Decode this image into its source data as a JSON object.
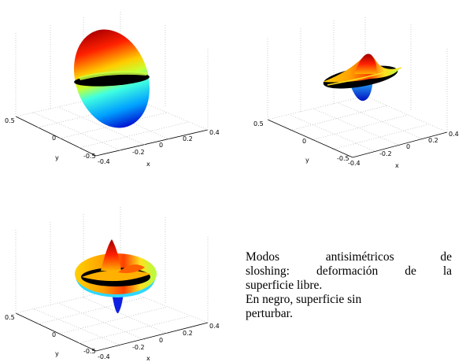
{
  "panels": [
    {
      "ticks_y": [
        "0.5",
        "0",
        "-0.5"
      ],
      "ticks_x": [
        "-0.4",
        "-0.2",
        "0",
        "0.2",
        "0.4"
      ],
      "label_y": "y",
      "label_x": "x",
      "mode": "mode-1"
    },
    {
      "ticks_y": [
        "0.5",
        "0",
        "-0.5"
      ],
      "ticks_x": [
        "-0.4",
        "-0.2",
        "0",
        "0.2",
        "0.4"
      ],
      "label_y": "y",
      "label_x": "x",
      "mode": "mode-2"
    },
    {
      "ticks_y": [
        "0.5",
        "0",
        "-0.5"
      ],
      "ticks_x": [
        "-0.4",
        "-0.2",
        "0",
        "0.2",
        "0.4"
      ],
      "label_y": "y",
      "label_x": "x",
      "mode": "mode-3"
    }
  ],
  "caption": {
    "line1": "Modos antisimétricos de",
    "line2": "sloshing: deformación de la",
    "line3": "superficie libre.",
    "line4": "En negro, superficie sin",
    "line5": "perturbar."
  },
  "colors": {
    "free_surface": "#000000",
    "colormap": [
      "#00008f",
      "#0000ff",
      "#00ffff",
      "#ffff00",
      "#ff0000",
      "#800000"
    ]
  }
}
